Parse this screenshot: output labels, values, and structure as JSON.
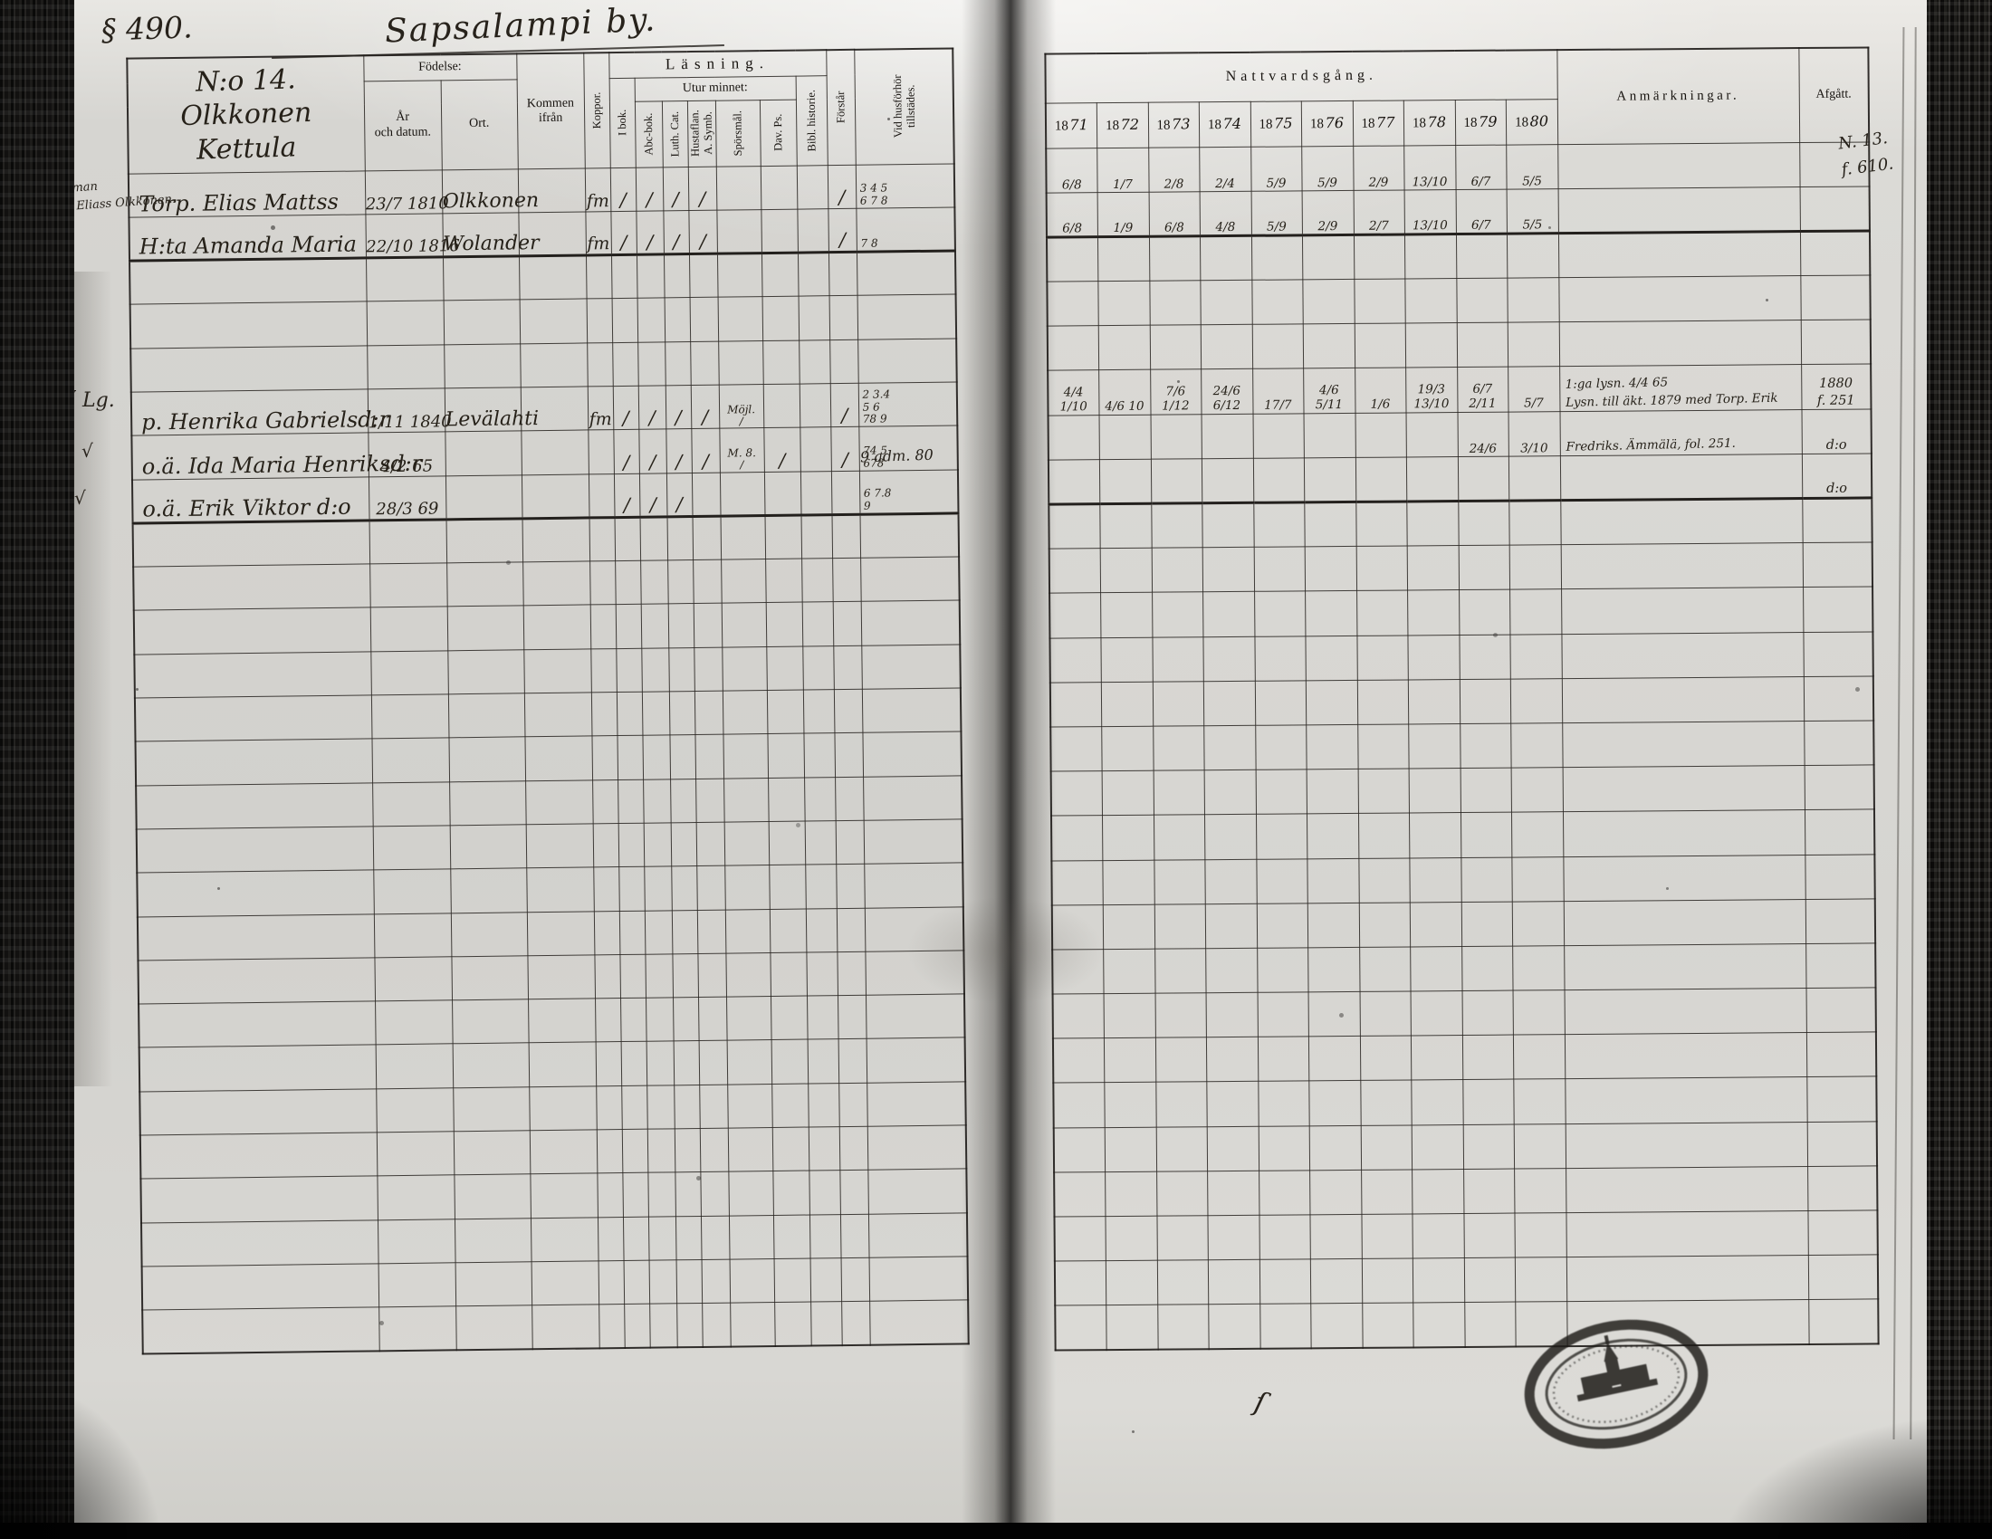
{
  "document": {
    "folio_number": "§ 490.",
    "village_title": "Sapsalampi by.",
    "margin_note_right": "N. 13.\nf. 610.",
    "margin_note_sytning": "Sytn. man\nå Joh. Eliass Olkkonen.",
    "margin_check_1": "√ Lg.",
    "margin_check_2": "√",
    "margin_check_3": "√",
    "adm_note": "9 adm. 80",
    "ink_mark": "ſ"
  },
  "left_table": {
    "household": {
      "line1": "N:o 14.",
      "line2": "Olkkonen",
      "line3": "Kettula"
    },
    "headers": {
      "fodelse": "Födelse:",
      "ar_och_datum": "År\noch datum.",
      "ort": "Ort.",
      "kommen_ifran": "Kommen ifrån",
      "koppor": "Koppor.",
      "lasning": "Läsning.",
      "utur_minnet": "Utur minnet:",
      "i_bok": "I bok.",
      "abc_bok": "Abc-bok.",
      "luth_cat": "Luth. Cat.",
      "hustaflan": "Hustaflan.\nA. Symb.",
      "sporsmal": "Spörsmål.",
      "dav_ps": "Dav. Ps.",
      "bibl_historie": "Bibl. historie.",
      "forstar": "Förstår",
      "vid_husforhor": "Vid husförhör\ntillstädes."
    },
    "rows": {
      "0": [
        "Torp. Elias Mattss",
        "23/7 1810",
        "Olkkonen",
        "",
        "fm",
        "/",
        "/",
        "/",
        "/",
        "",
        "",
        "",
        "/",
        "3 4 5\n6 7 8"
      ],
      "1": [
        "H:ta Amanda Maria",
        "22/10 1816",
        "Wolander",
        "",
        "fm",
        "/",
        "/",
        "/",
        "/",
        "",
        "",
        "",
        "/",
        "7 8"
      ],
      "5": [
        "p. Henrika Gabrielsd:r",
        "1/11 1840",
        "Levälahti",
        "",
        "fm",
        "/",
        "/",
        "/",
        "/",
        "Möjl.\n/",
        "",
        "",
        "/",
        "2 3.4\n5 6\n78 9"
      ],
      "6": [
        "o.ä. Ida Maria Henriksd:r",
        "4/2 65",
        "",
        "",
        "",
        "/",
        "/",
        "/",
        "/",
        "M. 8.\n/",
        "/",
        "",
        "/",
        "74 5\n678"
      ],
      "7": [
        "o.ä. Erik Viktor   d:o",
        "28/3 69",
        "",
        "",
        "",
        "/",
        "/",
        "/",
        "",
        "",
        "",
        "",
        "",
        "6 7.8\n9"
      ]
    }
  },
  "right_table": {
    "header": "Nattvardsgång.",
    "years": [
      "1871",
      "1872",
      "1873",
      "1874",
      "1875",
      "1876",
      "1877",
      "1878",
      "1879",
      "1880"
    ],
    "anmarkningar": "Anmärkningar.",
    "afgatt": "Afgått.",
    "rows": {
      "0": [
        "6/8",
        "1/7",
        "2/8",
        "2/4",
        "5/9",
        "5/9",
        "2/9",
        "13/10",
        "6/7",
        "5/5",
        "",
        ""
      ],
      "1": [
        "6/8",
        "1/9",
        "6/8",
        "4/8",
        "5/9",
        "2/9",
        "2/7",
        "13/10",
        "6/7",
        "5/5",
        "",
        ""
      ],
      "5": [
        "4/4 1/10",
        "4/6 10",
        "7/6 1/12",
        "24/6 6/12",
        "17/7",
        "4/6 5/11",
        "1/6",
        "19/3 13/10",
        "6/7 2/11",
        "5/7",
        "1:ga lysn. 4/4 65\nLysn. till äkt. 1879 med Torp. Erik",
        "1880\nf. 251"
      ],
      "6": [
        "",
        "",
        "",
        "",
        "",
        "",
        "",
        "",
        "24/6",
        "3/10",
        "Fredriks. Ämmälä, fol. 251.",
        "d:o"
      ],
      "7": [
        "",
        "",
        "",
        "",
        "",
        "",
        "",
        "",
        "",
        "",
        "",
        "d:o"
      ]
    }
  }
}
